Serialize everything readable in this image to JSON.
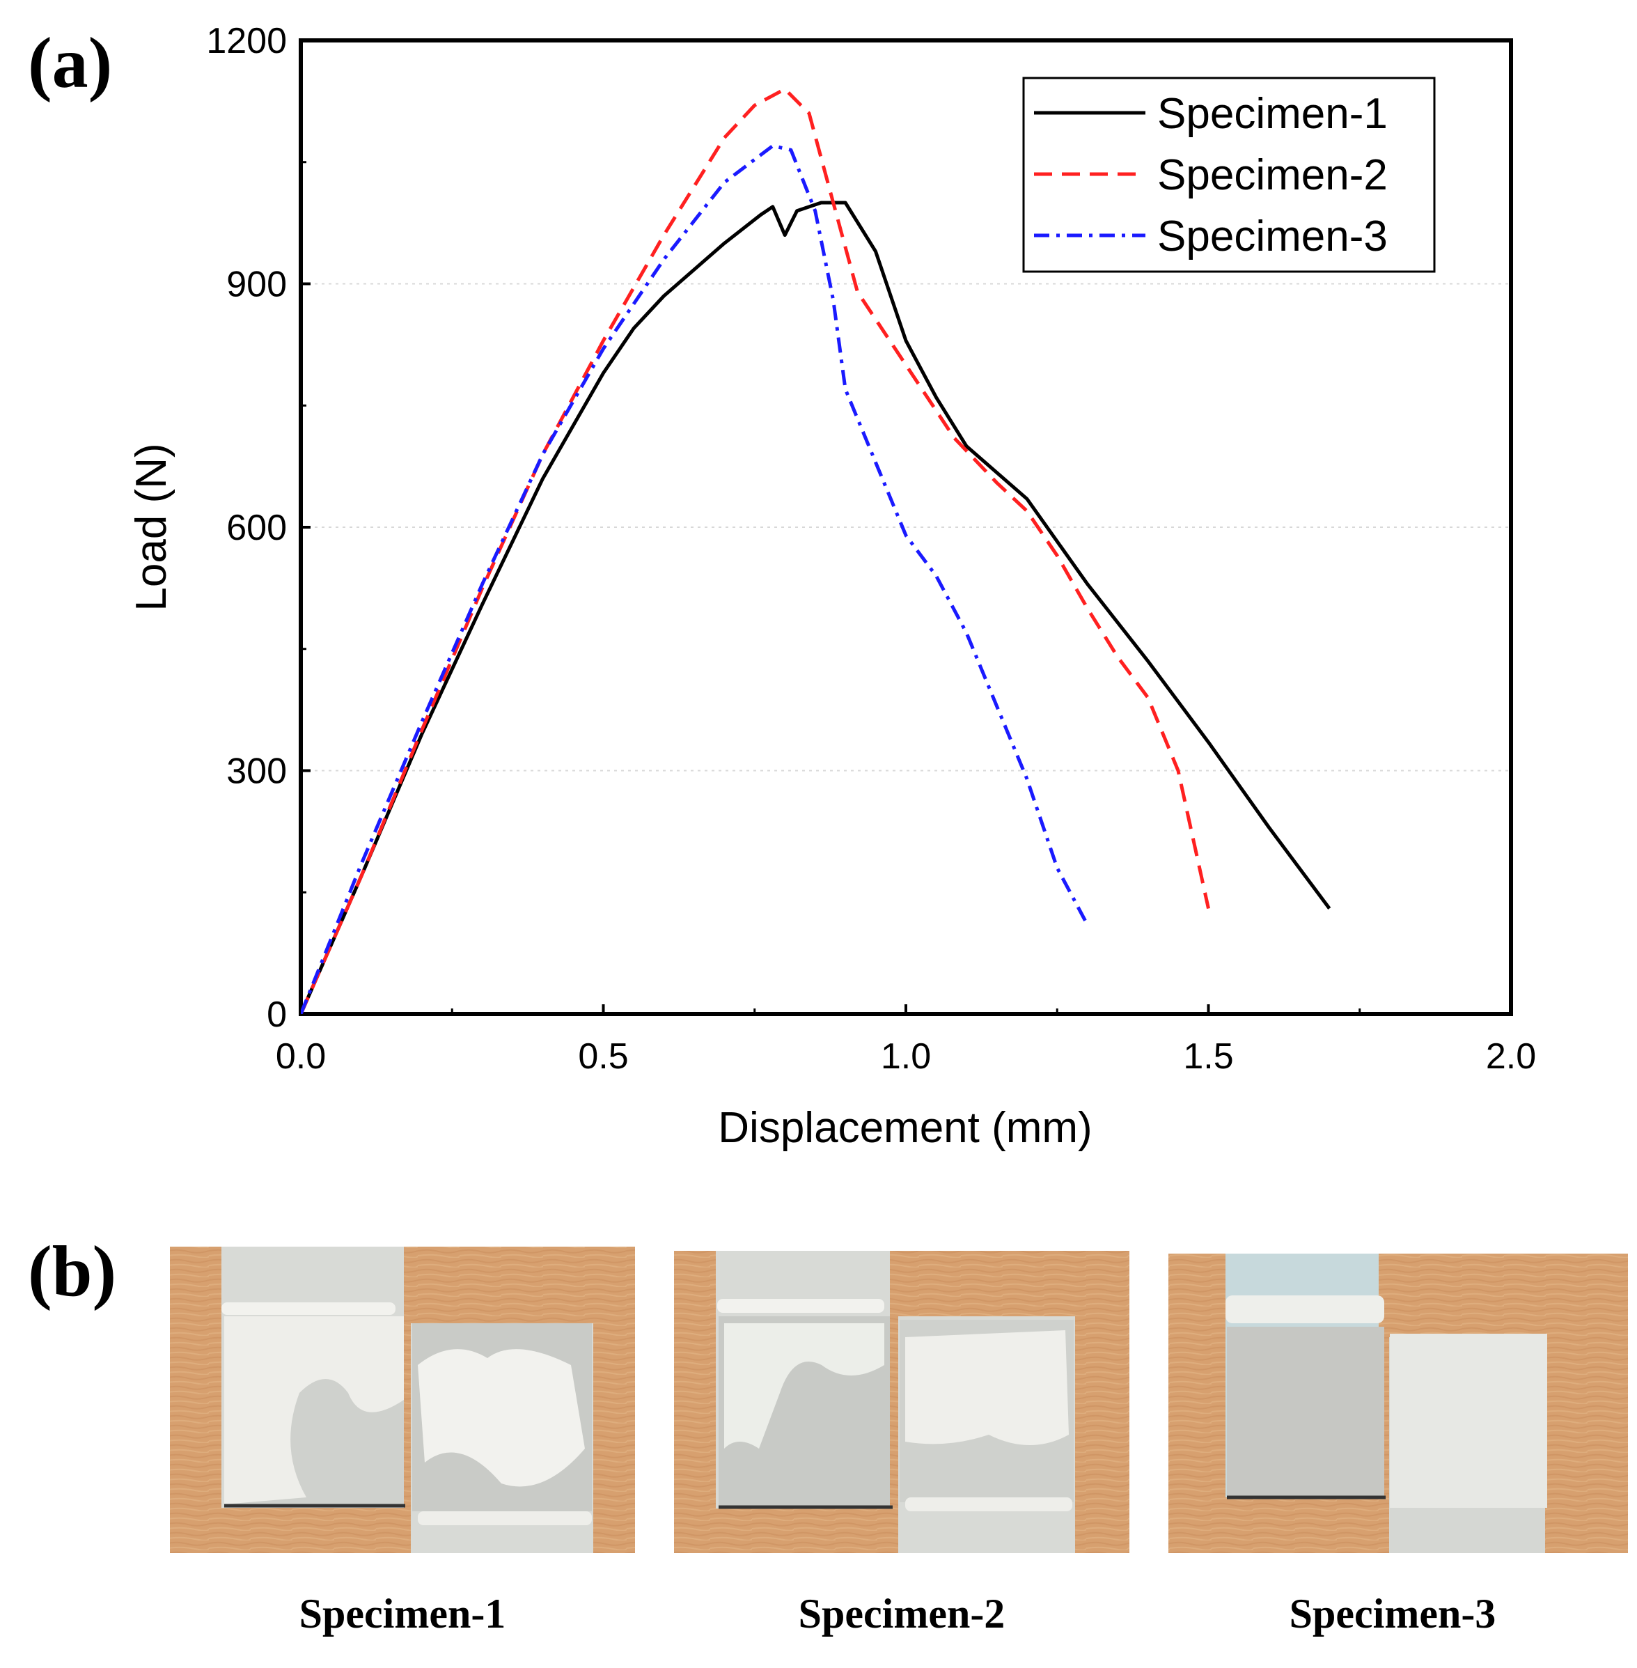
{
  "panels": {
    "a": "(a)",
    "b": "(b)"
  },
  "chart_data": {
    "type": "line",
    "title": "",
    "xlabel": "Displacement (mm)",
    "ylabel": "Load (N)",
    "xlim": [
      0,
      2.0
    ],
    "ylim": [
      0,
      1200
    ],
    "xticks": [
      "0.0",
      "0.5",
      "1.0",
      "1.5",
      "2.0"
    ],
    "yticks": [
      "0",
      "300",
      "600",
      "900",
      "1200"
    ],
    "grid": true,
    "legend_position": "top-right",
    "series": [
      {
        "name": "Specimen-1",
        "color": "#000000",
        "style": "solid",
        "x": [
          0.0,
          0.1,
          0.2,
          0.3,
          0.4,
          0.5,
          0.55,
          0.6,
          0.7,
          0.76,
          0.78,
          0.8,
          0.82,
          0.86,
          0.9,
          0.95,
          1.0,
          1.05,
          1.1,
          1.2,
          1.3,
          1.4,
          1.5,
          1.6,
          1.7
        ],
        "y": [
          0,
          170,
          345,
          505,
          660,
          790,
          845,
          885,
          950,
          985,
          995,
          960,
          990,
          1000,
          1000,
          940,
          830,
          760,
          700,
          635,
          530,
          435,
          335,
          230,
          130
        ]
      },
      {
        "name": "Specimen-2",
        "color": "#ff2020",
        "style": "dashed",
        "x": [
          0.0,
          0.1,
          0.2,
          0.3,
          0.4,
          0.5,
          0.6,
          0.7,
          0.75,
          0.8,
          0.84,
          0.88,
          0.92,
          1.0,
          1.08,
          1.15,
          1.2,
          1.25,
          1.3,
          1.35,
          1.4,
          1.45,
          1.5
        ],
        "y": [
          0,
          170,
          350,
          525,
          690,
          830,
          960,
          1080,
          1120,
          1140,
          1110,
          1000,
          890,
          800,
          710,
          655,
          620,
          565,
          500,
          440,
          390,
          300,
          130
        ]
      },
      {
        "name": "Specimen-3",
        "color": "#1a1aff",
        "style": "dash-dot",
        "x": [
          0.0,
          0.1,
          0.2,
          0.3,
          0.4,
          0.5,
          0.6,
          0.7,
          0.78,
          0.81,
          0.85,
          0.88,
          0.9,
          0.95,
          1.0,
          1.05,
          1.1,
          1.15,
          1.2,
          1.25,
          1.3
        ],
        "y": [
          0,
          185,
          360,
          530,
          690,
          820,
          930,
          1025,
          1070,
          1065,
          990,
          880,
          770,
          680,
          590,
          540,
          470,
          380,
          290,
          180,
          110
        ]
      }
    ]
  },
  "photos": [
    {
      "caption": "Specimen-1"
    },
    {
      "caption": "Specimen-2"
    },
    {
      "caption": "Specimen-3"
    }
  ],
  "colors": {
    "wood": "#d9a070",
    "plate": "#d6d8d4",
    "adhesive": "#f2f2ee"
  }
}
